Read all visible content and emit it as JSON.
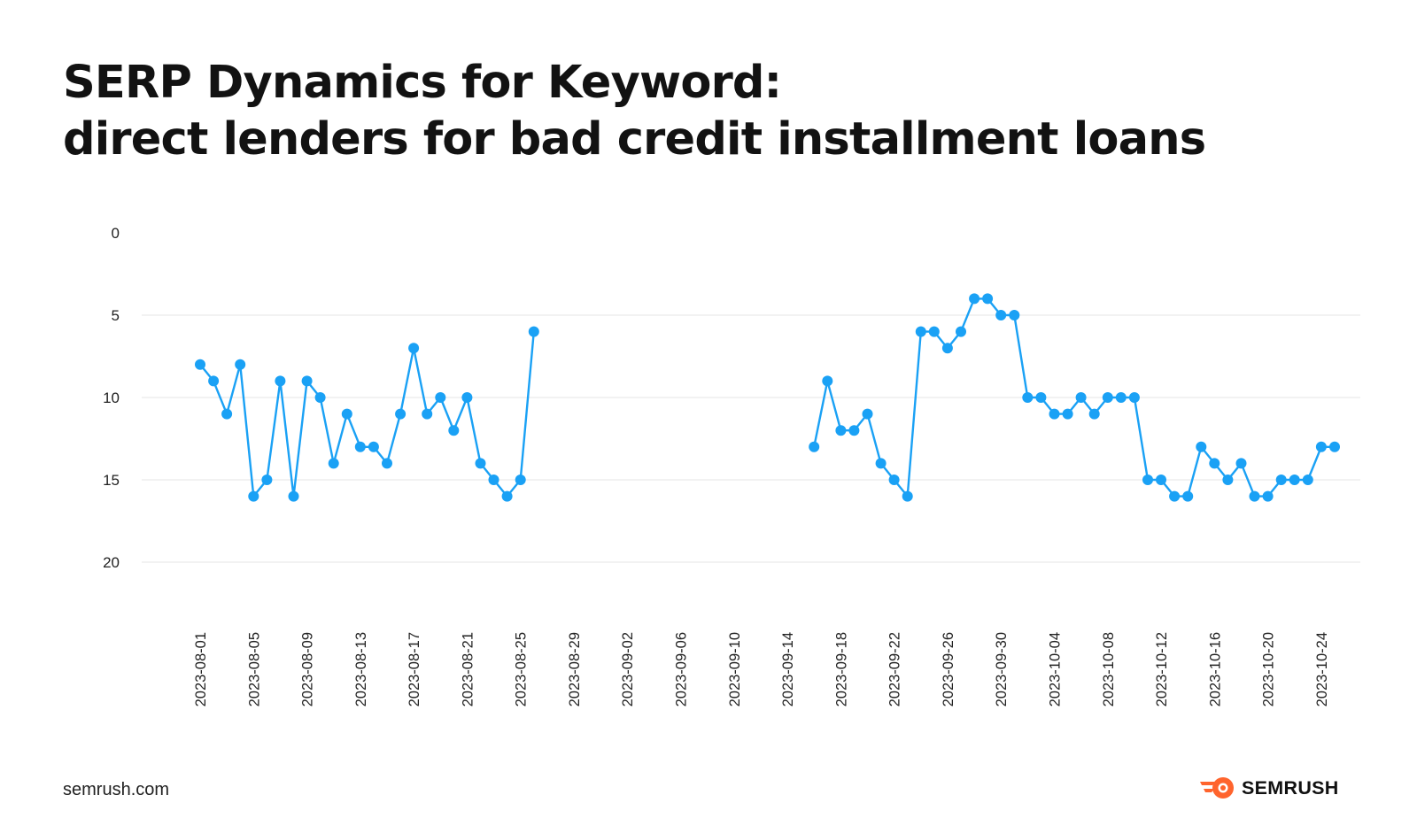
{
  "header": {
    "title_line1": "SERP Dynamics for Keyword:",
    "title_line2": "direct lenders for bad credit installment loans"
  },
  "footer": {
    "site": "semrush.com",
    "brand": "SEMRUSH"
  },
  "colors": {
    "series": "#1aa1f5",
    "grid": "#e9e9e9",
    "text": "#111111",
    "brand_accent": "#ff642d"
  },
  "chart_data": {
    "type": "line",
    "title": "SERP Dynamics for Keyword: direct lenders for bad credit installment loans",
    "xlabel": "",
    "ylabel": "",
    "y_inverted": true,
    "ylim": [
      0,
      20
    ],
    "yticks": [
      0,
      5,
      10,
      15,
      20
    ],
    "grid": "horizontal",
    "legend": "none",
    "x_range": [
      "2023-08-01",
      "2023-10-25"
    ],
    "x_tick_labels": [
      "2023-08-01",
      "2023-08-05",
      "2023-08-09",
      "2023-08-13",
      "2023-08-17",
      "2023-08-21",
      "2023-08-25",
      "2023-08-29",
      "2023-09-02",
      "2023-09-06",
      "2023-09-10",
      "2023-09-14",
      "2023-09-18",
      "2023-09-22",
      "2023-09-26",
      "2023-09-30",
      "2023-10-04",
      "2023-10-08",
      "2023-10-12",
      "2023-10-16",
      "2023-10-20",
      "2023-10-24"
    ],
    "series": [
      {
        "values": [
          [
            "2023-08-01",
            8
          ],
          [
            "2023-08-02",
            9
          ],
          [
            "2023-08-03",
            11
          ],
          [
            "2023-08-04",
            8
          ],
          [
            "2023-08-05",
            16
          ],
          [
            "2023-08-06",
            15
          ],
          [
            "2023-08-07",
            9
          ],
          [
            "2023-08-08",
            16
          ],
          [
            "2023-08-09",
            9
          ],
          [
            "2023-08-10",
            10
          ],
          [
            "2023-08-11",
            14
          ],
          [
            "2023-08-12",
            11
          ],
          [
            "2023-08-13",
            13
          ],
          [
            "2023-08-14",
            13
          ],
          [
            "2023-08-15",
            14
          ],
          [
            "2023-08-16",
            11
          ],
          [
            "2023-08-17",
            7
          ],
          [
            "2023-08-18",
            11
          ],
          [
            "2023-08-19",
            10
          ],
          [
            "2023-08-20",
            12
          ],
          [
            "2023-08-21",
            10
          ],
          [
            "2023-08-22",
            14
          ],
          [
            "2023-08-23",
            15
          ],
          [
            "2023-08-24",
            16
          ],
          [
            "2023-08-25",
            15
          ],
          [
            "2023-08-26",
            6
          ],
          [
            "2023-09-16",
            13
          ],
          [
            "2023-09-17",
            9
          ],
          [
            "2023-09-18",
            12
          ],
          [
            "2023-09-19",
            12
          ],
          [
            "2023-09-20",
            11
          ],
          [
            "2023-09-21",
            14
          ],
          [
            "2023-09-22",
            15
          ],
          [
            "2023-09-23",
            16
          ],
          [
            "2023-09-24",
            6
          ],
          [
            "2023-09-25",
            6
          ],
          [
            "2023-09-26",
            7
          ],
          [
            "2023-09-27",
            6
          ],
          [
            "2023-09-28",
            4
          ],
          [
            "2023-09-29",
            4
          ],
          [
            "2023-09-30",
            5
          ],
          [
            "2023-10-01",
            5
          ],
          [
            "2023-10-02",
            10
          ],
          [
            "2023-10-03",
            10
          ],
          [
            "2023-10-04",
            11
          ],
          [
            "2023-10-05",
            11
          ],
          [
            "2023-10-06",
            10
          ],
          [
            "2023-10-07",
            11
          ],
          [
            "2023-10-08",
            10
          ],
          [
            "2023-10-09",
            10
          ],
          [
            "2023-10-10",
            10
          ],
          [
            "2023-10-11",
            15
          ],
          [
            "2023-10-12",
            15
          ],
          [
            "2023-10-13",
            16
          ],
          [
            "2023-10-14",
            16
          ],
          [
            "2023-10-15",
            13
          ],
          [
            "2023-10-16",
            14
          ],
          [
            "2023-10-17",
            15
          ],
          [
            "2023-10-18",
            14
          ],
          [
            "2023-10-19",
            16
          ],
          [
            "2023-10-20",
            16
          ],
          [
            "2023-10-21",
            15
          ],
          [
            "2023-10-22",
            15
          ],
          [
            "2023-10-23",
            15
          ],
          [
            "2023-10-24",
            13
          ],
          [
            "2023-10-25",
            13
          ]
        ]
      }
    ]
  }
}
